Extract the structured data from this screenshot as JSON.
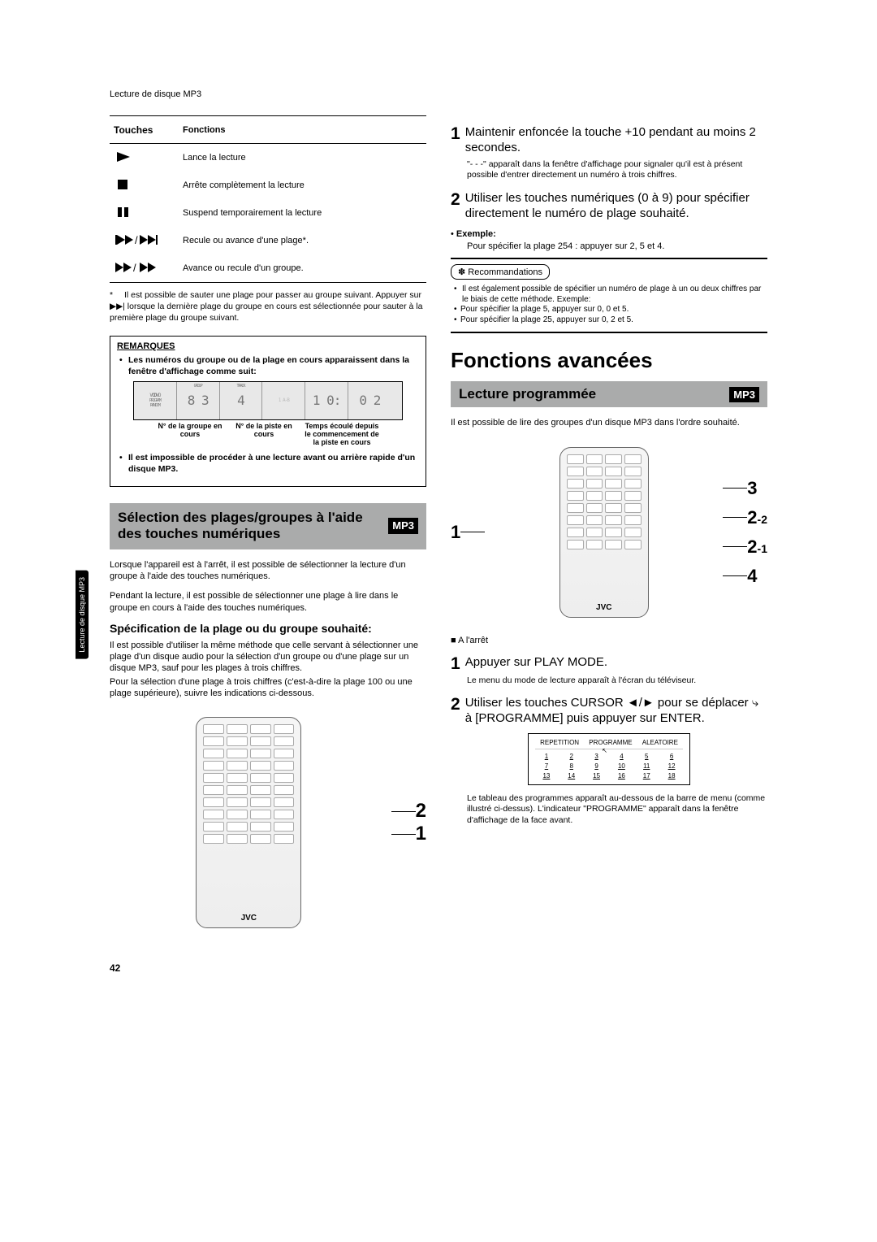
{
  "page": {
    "header": "Lecture de disque MP3",
    "number": "42"
  },
  "side_tab": "Lecture de\ndisque MP3",
  "touches_table": {
    "h1": "Touches",
    "h2": "Fonctions",
    "r1": "Lance la lecture",
    "r2": "Arrête complètement la lecture",
    "r3": "Suspend temporairement la lecture",
    "r4": "Recule ou avance d'une plage*.",
    "r5": "Avance ou recule d'un groupe."
  },
  "footnote": "Il est possible de sauter une plage pour passer au groupe suivant. Appuyer sur ▶▶| lorsque la dernière plage du groupe en cours est sélectionnée pour sauter à la première plage du groupe suivant.",
  "remarques": {
    "title": "REMARQUES",
    "b1": "Les numéros du groupe ou de la plage en cours apparaissent dans la fenêtre d'affichage comme suit:",
    "disp_labels": {
      "grp": "N° de la groupe en cours",
      "trk": "N° de la piste en cours",
      "time": "Temps écoulé depuis le commencement de la piste en cours"
    },
    "b2": "Il est impossible de procéder à une lecture avant ou arrière rapide d'un disque MP3."
  },
  "sel_section": {
    "title": "Sélection des plages/groupes à l'aide des touches numériques",
    "p1": "Lorsque l'appareil est à l'arrêt, il est possible de sélectionner la lecture d'un groupe à l'aide des touches numériques.",
    "p2": "Pendant la lecture, il est possible de sélectionner une plage à lire dans le groupe en cours à l'aide des touches numériques.",
    "h3": "Spécification de la plage ou du groupe souhaité:",
    "p3": "Il est possible d'utiliser la même méthode que celle servant à sélectionner une plage d'un disque audio pour la sélection d'un groupe ou d'une plage sur un disque MP3, sauf pour les plages à trois chiffres.",
    "p4": "Pour la sélection d'une plage à trois chiffres (c'est-à-dire la plage 100 ou une plage supérieure), suivre les indications ci-dessous."
  },
  "col2": {
    "s1": "Maintenir enfoncée la touche +10 pendant au moins 2 secondes.",
    "s1_sub": "\"- - -\" apparaît dans la fenêtre d'affichage pour signaler qu'il est à présent possible d'entrer directement un numéro à trois chiffres.",
    "s2": "Utiliser les touches numériques (0 à 9) pour spécifier directement le numéro de plage souhaité.",
    "ex_lbl": "Exemple:",
    "ex_txt": "Pour spécifier la plage 254 : appuyer sur 2, 5 et 4.",
    "reco_title": "Recommandations",
    "reco1": "Il est également possible de spécifier un numéro de plage à un ou deux chiffres par le biais de cette méthode. Exemple:",
    "reco2": "Pour spécifier la plage 5, appuyer sur 0, 0 et 5.",
    "reco3": "Pour spécifier la plage 25, appuyer sur 0, 2 et 5.",
    "fa_title": "Fonctions avancées",
    "lp_title": "Lecture programmée",
    "lp_p": "Il est possible de lire des groupes d'un disque MP3 dans l'ordre souhaité.",
    "arret": "A l'arrêt",
    "step1": "Appuyer sur PLAY MODE.",
    "step1_sub": "Le menu du mode de lecture apparaît à l'écran du téléviseur.",
    "step2": "Utiliser les touches CURSOR ◄/► pour se déplacer ⤷ à [PROGRAMME] puis appuyer sur ENTER.",
    "prog": {
      "h1": "REPETITION",
      "h2": "PROGRAMME",
      "h3": "ALEATOIRE"
    },
    "step2_sub": "Le tableau des programmes apparaît au-dessous de la barre de menu (comme illustré ci-dessus). L'indicateur \"PROGRAMME\" apparaît dans la fenêtre d'affichage de la face avant."
  },
  "digits_seg": [
    "VCD/D",
    "83",
    "4",
    "",
    "10:",
    "02"
  ],
  "mp3": "MP3",
  "jvc": "JVC",
  "prog_nums": [
    "1",
    "2",
    "3",
    "4",
    "5",
    "6",
    "7",
    "8",
    "9",
    "10",
    "11",
    "12",
    "13",
    "14",
    "15",
    "16",
    "17",
    "18"
  ]
}
